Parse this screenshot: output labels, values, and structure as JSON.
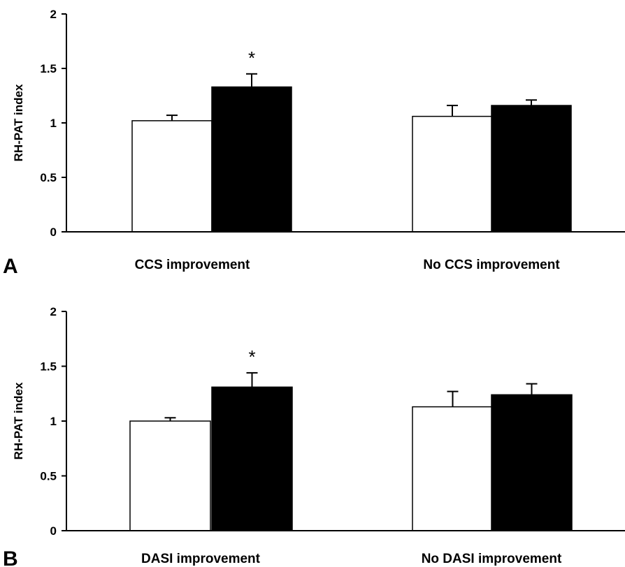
{
  "chart_data": [
    {
      "type": "bar",
      "panel_label": "A",
      "ylabel": "RH-PAT index",
      "ylim": [
        0,
        2
      ],
      "yticks": [
        "0",
        "0.5",
        "1",
        "1.5",
        "2"
      ],
      "categories": [
        "CCS improvement",
        "No CCS improvement"
      ],
      "series": [
        {
          "color": "#ffffff",
          "values": [
            1.02,
            1.06
          ],
          "errors": [
            0.05,
            0.1
          ]
        },
        {
          "color": "#000000",
          "values": [
            1.33,
            1.16
          ],
          "errors": [
            0.12,
            0.05
          ]
        }
      ],
      "annotations": [
        {
          "text": "*",
          "category": 0,
          "series": 1
        }
      ],
      "grid": false
    },
    {
      "type": "bar",
      "panel_label": "B",
      "ylabel": "RH-PAT index",
      "ylim": [
        0,
        2
      ],
      "yticks": [
        "0",
        "0.5",
        "1",
        "1.5",
        "2"
      ],
      "categories": [
        "DASI improvement",
        "No DASI improvement"
      ],
      "series": [
        {
          "color": "#ffffff",
          "values": [
            1.0,
            1.13
          ],
          "errors": [
            0.03,
            0.14
          ]
        },
        {
          "color": "#000000",
          "values": [
            1.31,
            1.24
          ],
          "errors": [
            0.13,
            0.1
          ]
        }
      ],
      "annotations": [
        {
          "text": "*",
          "category": 0,
          "series": 1
        }
      ],
      "grid": false
    }
  ]
}
